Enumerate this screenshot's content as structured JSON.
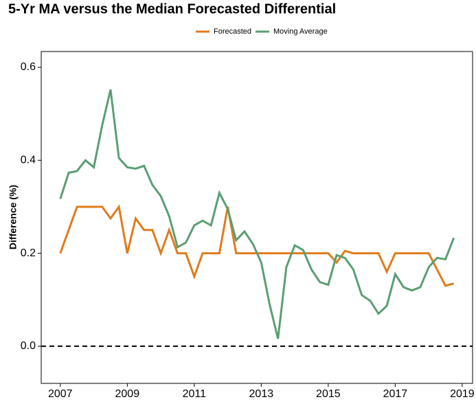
{
  "chart_data": {
    "type": "line",
    "title": "5-Yr MA versus the Median Forecasted Differential",
    "y_label": "Difference (%)",
    "x": [
      2007,
      2007.25,
      2007.5,
      2007.75,
      2008,
      2008.25,
      2008.5,
      2008.75,
      2009,
      2009.25,
      2009.5,
      2009.75,
      2010,
      2010.25,
      2010.5,
      2010.75,
      2011,
      2011.25,
      2011.5,
      2011.75,
      2012,
      2012.25,
      2012.5,
      2012.75,
      2013,
      2013.25,
      2013.5,
      2013.75,
      2014,
      2014.25,
      2014.5,
      2014.75,
      2015,
      2015.25,
      2015.5,
      2015.75,
      2016,
      2016.25,
      2016.5,
      2016.75,
      2017,
      2017.25,
      2017.5,
      2017.75,
      2018,
      2018.25,
      2018.5,
      2018.75
    ],
    "series": [
      {
        "name": "Forecasted",
        "color": "#e07b1c",
        "values": [
          0.2,
          0.25,
          0.3,
          0.3,
          0.3,
          0.3,
          0.275,
          0.3,
          0.2,
          0.275,
          0.25,
          0.25,
          0.2,
          0.25,
          0.2,
          0.2,
          0.15,
          0.2,
          0.2,
          0.2,
          0.3,
          0.2,
          0.2,
          0.2,
          0.2,
          0.2,
          0.2,
          0.2,
          0.2,
          0.2,
          0.2,
          0.2,
          0.2,
          0.18,
          0.205,
          0.2,
          0.2,
          0.2,
          0.2,
          0.16,
          0.2,
          0.2,
          0.2,
          0.2,
          0.2,
          0.165,
          0.13,
          0.135
        ]
      },
      {
        "name": "Moving Average",
        "color": "#5a9e72",
        "values": [
          0.317,
          0.373,
          0.377,
          0.4,
          0.385,
          0.475,
          0.552,
          0.405,
          0.385,
          0.382,
          0.388,
          0.347,
          0.323,
          0.28,
          0.213,
          0.223,
          0.26,
          0.27,
          0.26,
          0.33,
          0.295,
          0.228,
          0.247,
          0.22,
          0.18,
          0.09,
          0.016,
          0.17,
          0.217,
          0.207,
          0.165,
          0.138,
          0.132,
          0.196,
          0.19,
          0.165,
          0.11,
          0.098,
          0.07,
          0.087,
          0.155,
          0.127,
          0.12,
          0.127,
          0.17,
          0.19,
          0.187,
          0.233
        ]
      }
    ],
    "xlim": [
      2006.43,
      2019.31
    ],
    "xticks": [
      2007,
      2009,
      2011,
      2013,
      2015,
      2017,
      2019
    ],
    "ylim": [
      -0.08,
      0.634
    ],
    "yticks": [
      {
        "value": 0,
        "label": "0.0"
      },
      {
        "value": 0.2,
        "label": "0.2"
      },
      {
        "value": 0.4,
        "label": "0.4"
      },
      {
        "value": 0.6,
        "label": "0.6"
      }
    ],
    "reference_line": 0,
    "legend": "top"
  }
}
